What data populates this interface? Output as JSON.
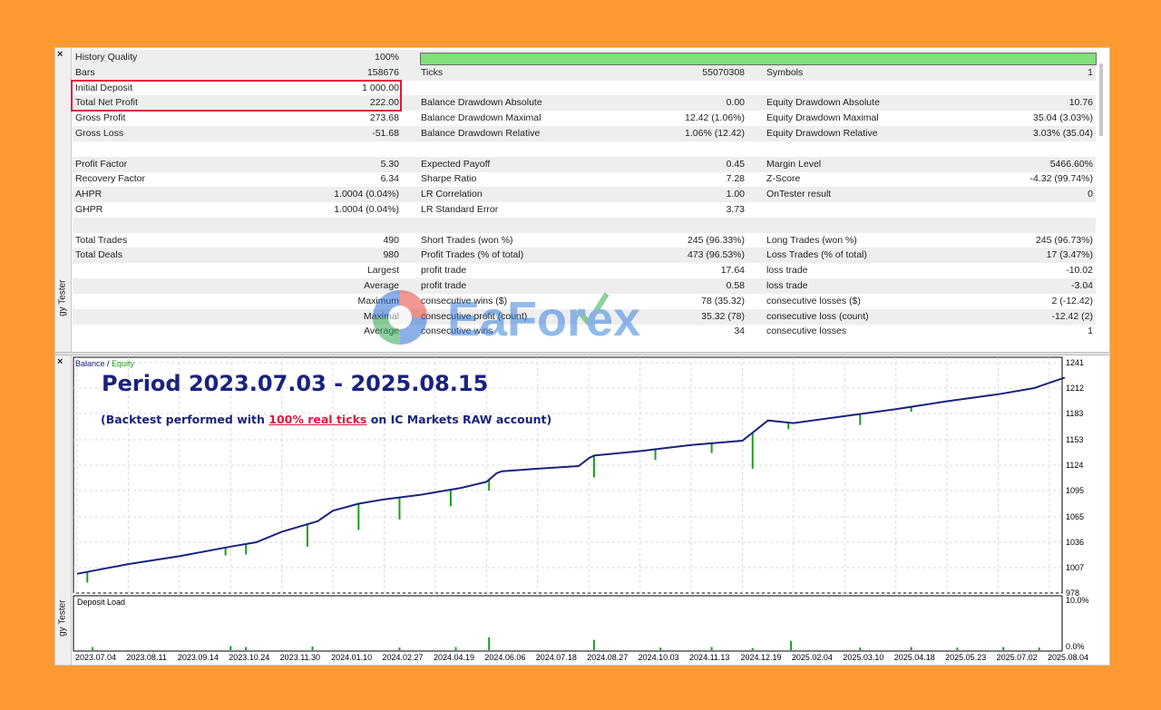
{
  "window": {
    "panel_title": "Strategy Tester",
    "panel_title_visible": "gy Tester",
    "close_glyph": "×"
  },
  "stats": {
    "rows": [
      {
        "shade": true,
        "c1": [
          "History Quality",
          "100%"
        ],
        "bar": true
      },
      {
        "shade": true,
        "c1": [
          "Bars",
          "158676"
        ],
        "c2": [
          "Ticks",
          "55070308"
        ],
        "c3": [
          "Symbols",
          "1"
        ]
      },
      {
        "shade": false,
        "c1": [
          "Initial Deposit",
          "1 000.00"
        ]
      },
      {
        "shade": true,
        "c1": [
          "Total Net Profit",
          "222.00"
        ],
        "c2": [
          "Balance Drawdown Absolute",
          "0.00"
        ],
        "c3": [
          "Equity Drawdown Absolute",
          "10.76"
        ]
      },
      {
        "shade": false,
        "c1": [
          "Gross Profit",
          "273.68"
        ],
        "c2": [
          "Balance Drawdown Maximal",
          "12.42 (1.06%)"
        ],
        "c3": [
          "Equity Drawdown Maximal",
          "35.04 (3.03%)"
        ]
      },
      {
        "shade": true,
        "c1": [
          "Gross Loss",
          "-51.68"
        ],
        "c2": [
          "Balance Drawdown Relative",
          "1.06% (12.42)"
        ],
        "c3": [
          "Equity Drawdown Relative",
          "3.03% (35.04)"
        ]
      },
      {
        "shade": false
      },
      {
        "shade": true,
        "c1": [
          "Profit Factor",
          "5.30"
        ],
        "c2": [
          "Expected Payoff",
          "0.45"
        ],
        "c3": [
          "Margin Level",
          "5466.60%"
        ]
      },
      {
        "shade": false,
        "c1": [
          "Recovery Factor",
          "6.34"
        ],
        "c2": [
          "Sharpe Ratio",
          "7.28"
        ],
        "c3": [
          "Z-Score",
          "-4.32 (99.74%)"
        ]
      },
      {
        "shade": true,
        "c1": [
          "AHPR",
          "1.0004 (0.04%)"
        ],
        "c2": [
          "LR Correlation",
          "1.00"
        ],
        "c3": [
          "OnTester result",
          "0"
        ]
      },
      {
        "shade": false,
        "c1": [
          "GHPR",
          "1.0004 (0.04%)"
        ],
        "c2": [
          "LR Standard Error",
          "3.73"
        ]
      },
      {
        "shade": true
      },
      {
        "shade": false,
        "c1": [
          "Total Trades",
          "490"
        ],
        "c2": [
          "Short Trades (won %)",
          "245 (96.33%)"
        ],
        "c3": [
          "Long Trades (won %)",
          "245 (96.73%)"
        ]
      },
      {
        "shade": true,
        "c1": [
          "Total Deals",
          "980"
        ],
        "c2": [
          "Profit Trades (% of total)",
          "473 (96.53%)"
        ],
        "c3": [
          "Loss Trades (% of total)",
          "17 (3.47%)"
        ]
      },
      {
        "shade": false,
        "c1": [
          "",
          "Largest"
        ],
        "c2": [
          "profit trade",
          "17.64"
        ],
        "c3": [
          "loss trade",
          "-10.02"
        ]
      },
      {
        "shade": true,
        "c1": [
          "",
          "Average"
        ],
        "c2": [
          "profit trade",
          "0.58"
        ],
        "c3": [
          "loss trade",
          "-3.04"
        ]
      },
      {
        "shade": false,
        "c1": [
          "",
          "Maximum"
        ],
        "c2": [
          "consecutive wins ($)",
          "78 (35.32)"
        ],
        "c3": [
          "consecutive losses ($)",
          "2 (-12.42)"
        ]
      },
      {
        "shade": true,
        "c1": [
          "",
          "Maximal"
        ],
        "c2": [
          "consecutive profit (count)",
          "35.32 (78)"
        ],
        "c3": [
          "consecutive loss (count)",
          "-12.42 (2)"
        ]
      },
      {
        "shade": false,
        "c1": [
          "",
          "Average"
        ],
        "c2": [
          "consecutive wins",
          "34"
        ],
        "c3": [
          "consecutive losses",
          "1"
        ]
      }
    ]
  },
  "overlay": {
    "title": "Period 2023.07.03 - 2025.08.15",
    "subtitle_pre": "(Backtest performed with ",
    "subtitle_highlight": "100% real ticks",
    "subtitle_post": " on IC Markets RAW account)",
    "watermark": "EaForex"
  },
  "colors": {
    "background": "#FF9A32",
    "balance_line": "#1a237e",
    "equity_line": "#1a9e1a",
    "highlight_box": "#e0193f",
    "quality_bar": "#80e07a"
  },
  "chart_data": [
    {
      "type": "line",
      "legend": [
        "Balance",
        "Equity"
      ],
      "y_ticks": [
        978,
        1007,
        1036,
        1065,
        1095,
        1124,
        1153,
        1183,
        1212,
        1241
      ],
      "ylim": [
        978,
        1241
      ],
      "x_ticks": [
        "2023.07.04",
        "2023.08.11",
        "2023.09.14",
        "2023.10.24",
        "2023.11.30",
        "2024.01.10",
        "2024.02.27",
        "2024.04.19",
        "2024.06.06",
        "2024.07.18",
        "2024.08.27",
        "2024.10.03",
        "2024.11.13",
        "2024.12.19",
        "2025.02.04",
        "2025.03.10",
        "2025.04.18",
        "2025.05.23",
        "2025.07.02",
        "2025.08.04"
      ],
      "series": [
        {
          "name": "Balance",
          "x": [
            0,
            1,
            2,
            3,
            3.5,
            4,
            4.7,
            5,
            5.5,
            6,
            6.7,
            7,
            7.5,
            8,
            8.2,
            8.3,
            9,
            9.8,
            10,
            10.1,
            11,
            11.7,
            12,
            13,
            13.5,
            14,
            15,
            16,
            17,
            18,
            18.7,
            19,
            19.3
          ],
          "values": [
            1000,
            1011,
            1020,
            1031,
            1036,
            1048,
            1060,
            1072,
            1080,
            1085,
            1090,
            1093,
            1098,
            1105,
            1115,
            1117,
            1120,
            1123,
            1132,
            1135,
            1140,
            1145,
            1147,
            1152,
            1175,
            1172,
            1180,
            1188,
            1197,
            1205,
            1212,
            1218,
            1224
          ]
        },
        {
          "name": "Equity",
          "x": [
            0.2,
            2.9,
            3.3,
            4.5,
            5.5,
            6.3,
            7.3,
            8.05,
            10.1,
            11.3,
            12.4,
            13.2,
            13.9,
            15.3,
            16.3,
            17.1,
            18.1,
            18.8
          ],
          "values": [
            990,
            1021,
            1022,
            1031,
            1050,
            1062,
            1077,
            1095,
            1110,
            1130,
            1138,
            1120,
            1165,
            1170,
            1185,
            1198,
            1206,
            1214
          ]
        }
      ]
    },
    {
      "type": "bar",
      "title": "Deposit Load",
      "y_ticks": [
        "10.0%",
        "0.0%"
      ],
      "ylim": [
        0,
        10
      ],
      "x": [
        0.3,
        3.0,
        3.3,
        4.6,
        6.3,
        7.4,
        8.05,
        10.1,
        11.4,
        12.4,
        13.2,
        13.95,
        15.3,
        16.3,
        17.2,
        18.1,
        18.8
      ],
      "values": [
        0.6,
        0.8,
        0.6,
        0.7,
        0.5,
        0.6,
        2.5,
        2.0,
        0.5,
        0.6,
        0.4,
        1.8,
        0.5,
        0.6,
        0.5,
        0.6,
        0.5
      ]
    }
  ]
}
